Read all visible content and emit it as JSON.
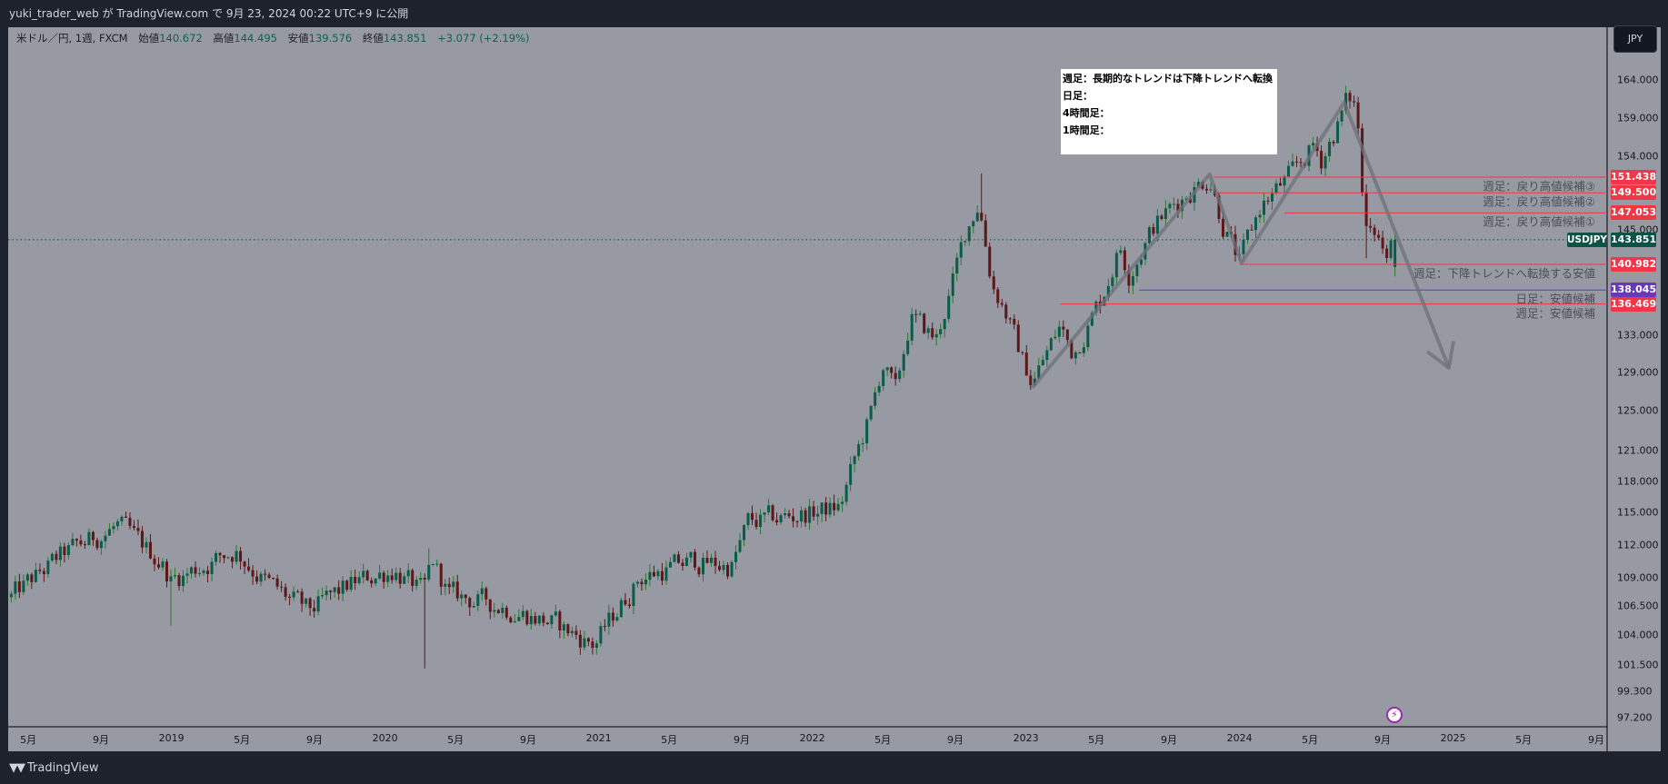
{
  "header": {
    "title": "yuki_trader_web が TradingView.com で 9月 23, 2024 00:22 UTC+9 に公開"
  },
  "legend": {
    "symbol": "米ドル／円, 1週, FXCM",
    "open_label": "始値",
    "open": "140.672",
    "high_label": "高値",
    "high": "144.495",
    "low_label": "安値",
    "low": "139.576",
    "close_label": "終値",
    "close": "143.851",
    "change": "+3.077 (+2.19%)"
  },
  "currency_button": "JPY",
  "note_box": {
    "lines": [
      "週足：長期的なトレンドは下降トレンドへ転換",
      "日足：",
      "4時間足：",
      "1時間足："
    ]
  },
  "price_axis": {
    "scale": "log",
    "range": [
      97.2,
      164.0
    ],
    "ticks": [
      "164.000",
      "159.000",
      "154.000",
      "145.000",
      "133.000",
      "129.000",
      "125.000",
      "121.000",
      "118.000",
      "115.000",
      "112.000",
      "109.000",
      "106.500",
      "104.000",
      "101.500",
      "99.300",
      "97.200"
    ]
  },
  "time_axis": {
    "ticks": [
      {
        "t": 2018.33,
        "label": "5月"
      },
      {
        "t": 2018.67,
        "label": "9月"
      },
      {
        "t": 2019.0,
        "label": "2019"
      },
      {
        "t": 2019.33,
        "label": "5月"
      },
      {
        "t": 2019.67,
        "label": "9月"
      },
      {
        "t": 2020.0,
        "label": "2020"
      },
      {
        "t": 2020.33,
        "label": "5月"
      },
      {
        "t": 2020.67,
        "label": "9月"
      },
      {
        "t": 2021.0,
        "label": "2021"
      },
      {
        "t": 2021.33,
        "label": "5月"
      },
      {
        "t": 2021.67,
        "label": "9月"
      },
      {
        "t": 2022.0,
        "label": "2022"
      },
      {
        "t": 2022.33,
        "label": "5月"
      },
      {
        "t": 2022.67,
        "label": "9月"
      },
      {
        "t": 2023.0,
        "label": "2023"
      },
      {
        "t": 2023.33,
        "label": "5月"
      },
      {
        "t": 2023.67,
        "label": "9月"
      },
      {
        "t": 2024.0,
        "label": "2024"
      },
      {
        "t": 2024.33,
        "label": "5月"
      },
      {
        "t": 2024.67,
        "label": "9月"
      },
      {
        "t": 2025.0,
        "label": "2025"
      },
      {
        "t": 2025.33,
        "label": "5月"
      },
      {
        "t": 2025.67,
        "label": "9月"
      }
    ]
  },
  "current_price": {
    "symbol": "USDJPY",
    "price": 143.851,
    "label": "143.851",
    "color": "#0b5345"
  },
  "levels": [
    {
      "price": 151.438,
      "label": "151.438",
      "note": "週足：戻り高値候補③",
      "color": "#f23645",
      "start": 2023.88
    },
    {
      "price": 149.5,
      "label": "149.500",
      "note": "週足：戻り高値候補②",
      "color": "#f23645",
      "start": 2023.88
    },
    {
      "price": 147.053,
      "label": "147.053",
      "note": "週足：戻り高値候補①",
      "color": "#f23645",
      "start": 2024.21
    },
    {
      "price": 140.982,
      "label": "140.982",
      "note": "週足：下降トレンドへ転換する安値",
      "color": "#f23645",
      "start": 2024.0
    },
    {
      "price": 138.045,
      "label": "138.045",
      "note": "日足：安値候補",
      "color": "#673ab7",
      "start": 2023.53
    },
    {
      "price": 136.469,
      "label": "136.469",
      "note": "週足：安値候補",
      "color": "#f23645",
      "start": 2023.16
    }
  ],
  "trend_path": [
    [
      2023.03,
      127.4
    ],
    [
      2023.86,
      151.8
    ],
    [
      2024.01,
      141.1
    ],
    [
      2024.49,
      161.0
    ],
    [
      2024.98,
      129.5
    ]
  ],
  "chart_data": {
    "type": "candlestick",
    "interval": "1W",
    "colors": {
      "up": "#085c48",
      "up_wick": "#2b7a2f",
      "down": "#5e1616",
      "down_wick": "#5e1616"
    },
    "waypoints": [
      [
        2018.25,
        107.3
      ],
      [
        2018.5,
        111.2
      ],
      [
        2018.75,
        113.8
      ],
      [
        2018.95,
        110.5
      ],
      [
        2019.0,
        108.8
      ],
      [
        2019.3,
        111.5
      ],
      [
        2019.45,
        108.5
      ],
      [
        2019.64,
        106.0
      ],
      [
        2019.85,
        108.5
      ],
      [
        2020.04,
        109.8
      ],
      [
        2020.18,
        107.5
      ],
      [
        2020.22,
        110.5
      ],
      [
        2020.3,
        107.5
      ],
      [
        2020.55,
        106.5
      ],
      [
        2020.79,
        105.0
      ],
      [
        2020.98,
        103.2
      ],
      [
        2021.19,
        109.0
      ],
      [
        2021.44,
        110.5
      ],
      [
        2021.62,
        110.0
      ],
      [
        2021.7,
        114.0
      ],
      [
        2021.95,
        114.8
      ],
      [
        2022.13,
        115.5
      ],
      [
        2022.19,
        119.5
      ],
      [
        2022.28,
        125.0
      ],
      [
        2022.33,
        130.0
      ],
      [
        2022.39,
        126.8
      ],
      [
        2022.46,
        135.0
      ],
      [
        2022.58,
        132.5
      ],
      [
        2022.66,
        139.0
      ],
      [
        2022.72,
        145.0
      ],
      [
        2022.78,
        148.5
      ],
      [
        2022.84,
        139.0
      ],
      [
        2022.9,
        136.0
      ],
      [
        2022.98,
        130.5
      ],
      [
        2023.03,
        128.0
      ],
      [
        2023.16,
        134.0
      ],
      [
        2023.22,
        131.0
      ],
      [
        2023.35,
        137.0
      ],
      [
        2023.44,
        143.0
      ],
      [
        2023.48,
        140.0
      ],
      [
        2023.6,
        145.5
      ],
      [
        2023.75,
        149.5
      ],
      [
        2023.86,
        151.5
      ],
      [
        2023.92,
        146.0
      ],
      [
        2024.0,
        141.0
      ],
      [
        2024.1,
        148.0
      ],
      [
        2024.2,
        150.5
      ],
      [
        2024.24,
        151.5
      ],
      [
        2024.35,
        155.5
      ],
      [
        2024.38,
        153.5
      ],
      [
        2024.45,
        157.5
      ],
      [
        2024.5,
        161.0
      ],
      [
        2024.53,
        161.5
      ],
      [
        2024.56,
        157.0
      ],
      [
        2024.58,
        146.5
      ],
      [
        2024.62,
        146.5
      ],
      [
        2024.66,
        144.0
      ],
      [
        2024.69,
        141.0
      ],
      [
        2024.72,
        143.851
      ]
    ],
    "wick_events": [
      {
        "t": 2019.0,
        "low": 104.8
      },
      {
        "t": 2020.18,
        "low": 101.2
      },
      {
        "t": 2020.2,
        "high": 111.7
      },
      {
        "t": 2022.8,
        "high": 151.9
      },
      {
        "t": 2023.03,
        "low": 127.2
      },
      {
        "t": 2024.53,
        "high": 161.9
      },
      {
        "t": 2024.6,
        "low": 141.7
      }
    ],
    "last_bar": {
      "open": 140.672,
      "high": 144.495,
      "low": 139.576,
      "close": 143.851
    }
  },
  "footer": {
    "brand": "TradingView",
    "logo_mark": "17"
  }
}
